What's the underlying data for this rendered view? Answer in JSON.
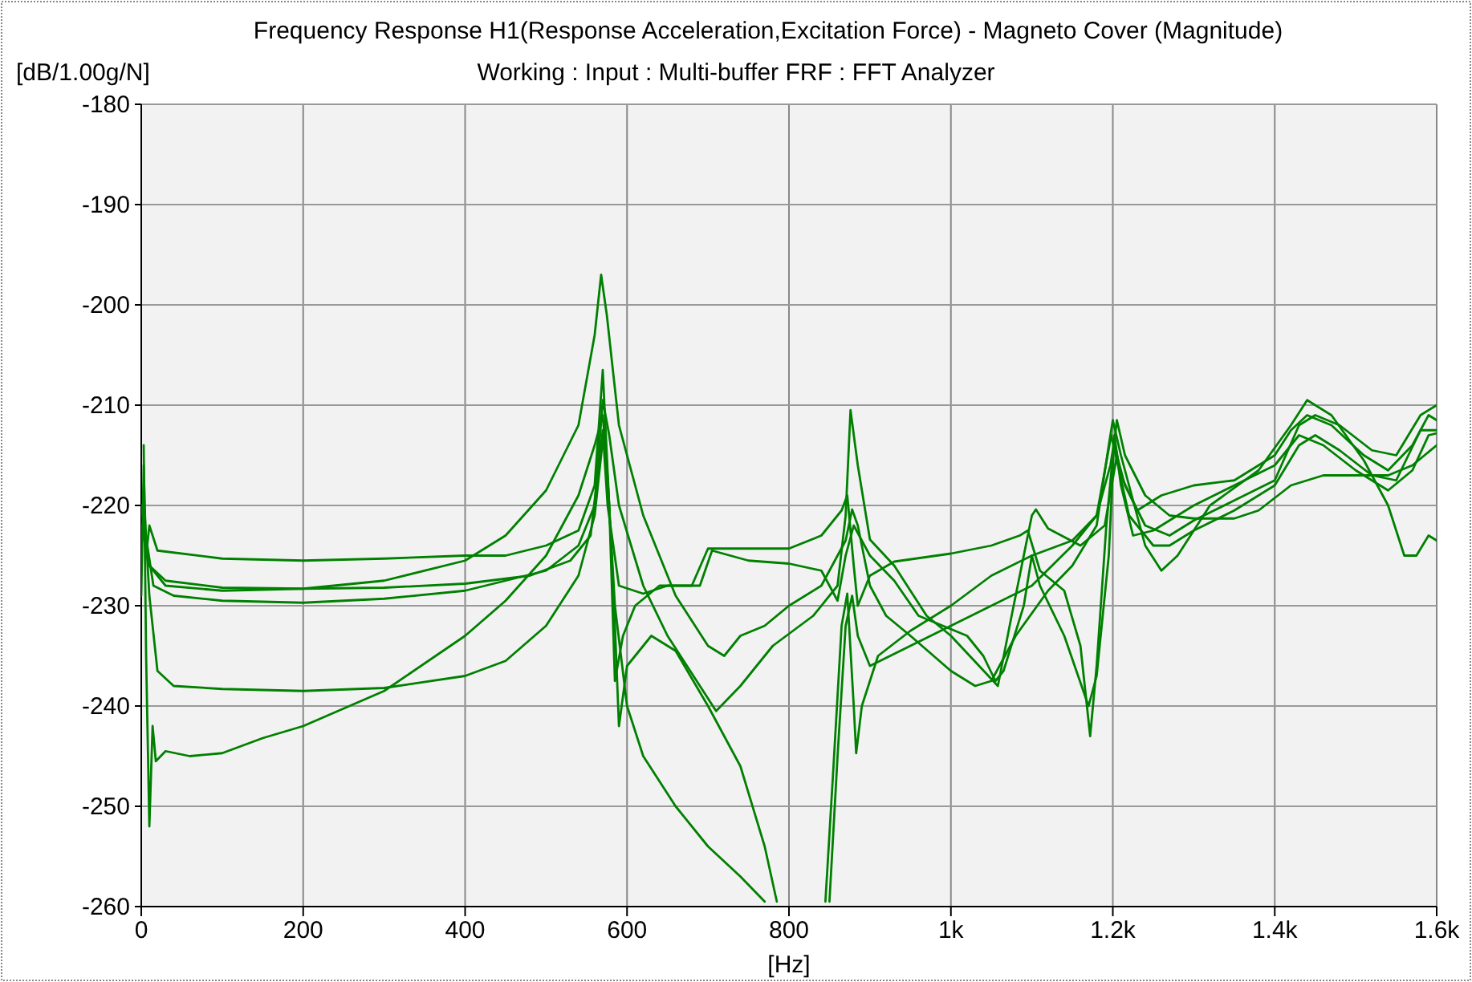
{
  "chart_data": {
    "type": "line",
    "title": "Frequency Response H1(Response Acceleration,Excitation Force) - Magneto Cover (Magnitude)",
    "subtitle": "Working : Input : Multi-buffer FRF : FFT Analyzer",
    "xlabel": "[Hz]",
    "ylabel": "[dB/1.00g/N]",
    "xlim": [
      0,
      1600
    ],
    "ylim": [
      -260,
      -180
    ],
    "xticks": [
      0,
      200,
      400,
      600,
      800,
      {
        "value": 1000,
        "label": "1k"
      },
      {
        "value": 1200,
        "label": "1.2k"
      },
      {
        "value": 1400,
        "label": "1.4k"
      },
      {
        "value": 1600,
        "label": "1.6k"
      }
    ],
    "yticks": [
      -260,
      -250,
      -240,
      -230,
      -220,
      -210,
      -200,
      -190,
      -180
    ],
    "grid": true,
    "marker": "none",
    "line_style": "solid",
    "series": [
      {
        "color": "#008000",
        "x": [
          0,
          3,
          6,
          10,
          20,
          100,
          200,
          300,
          400,
          450,
          500,
          540,
          560,
          570,
          578,
          585,
          595,
          610,
          640,
          680,
          700,
          750,
          800,
          840,
          865,
          872,
          880,
          885,
          900,
          930,
          1000,
          1050,
          1085,
          1095,
          1110,
          1140,
          1160,
          1172,
          1180,
          1192,
          1200,
          1205,
          1215,
          1240,
          1270,
          1300,
          1350,
          1380,
          1420,
          1460,
          1540,
          1570,
          1600
        ],
        "values": [
          -229,
          -216,
          -225,
          -222,
          -224.5,
          -225.3,
          -225.5,
          -225.3,
          -225,
          -225,
          -224,
          -222.5,
          -218,
          -206.5,
          -220,
          -237.5,
          -233,
          -230,
          -228,
          -228,
          -224.3,
          -224.3,
          -224.3,
          -223,
          -220.5,
          -219,
          -226,
          -230,
          -227,
          -225.6,
          -224.8,
          -224,
          -223,
          -222.5,
          -226.5,
          -228.5,
          -234,
          -243,
          -236,
          -222,
          -215,
          -211.5,
          -215,
          -219,
          -221,
          -221.3,
          -221.3,
          -220.5,
          -218,
          -217,
          -217,
          -216,
          -214
        ]
      },
      {
        "color": "#008000",
        "x": [
          0,
          10,
          30,
          100,
          200,
          300,
          400,
          480,
          530,
          555,
          565,
          570,
          576,
          590,
          620,
          650,
          690,
          705,
          750,
          800,
          840,
          860,
          870,
          880,
          900,
          930,
          960,
          990,
          1020,
          1040,
          1055,
          1065,
          1090,
          1100,
          1110,
          1140,
          1170,
          1180,
          1195,
          1202,
          1210,
          1225,
          1250,
          1300,
          1350,
          1400,
          1430,
          1460,
          1500,
          1540,
          1570,
          1590,
          1600
        ],
        "values": [
          -222,
          -226,
          -227.5,
          -228.2,
          -228.3,
          -228.2,
          -227.8,
          -227,
          -225.5,
          -223,
          -216,
          -212.5,
          -220,
          -228,
          -228.8,
          -228,
          -228,
          -224.5,
          -225.5,
          -225.8,
          -226.5,
          -229.5,
          -225,
          -222,
          -225,
          -227.5,
          -231,
          -232,
          -233,
          -235,
          -237.5,
          -236.5,
          -230,
          -225,
          -228,
          -233,
          -240,
          -237,
          -225,
          -213,
          -218,
          -223,
          -222.5,
          -220,
          -218,
          -216,
          -213,
          -214,
          -216.5,
          -218.5,
          -216.5,
          -213,
          -212.8
        ]
      },
      {
        "color": "#008000",
        "x": [
          0,
          15,
          40,
          100,
          200,
          300,
          400,
          500,
          540,
          560,
          570,
          578,
          590,
          620,
          650,
          690,
          710,
          740,
          780,
          830,
          860,
          870,
          876,
          885,
          900,
          930,
          970,
          1000,
          1058,
          1075,
          1100,
          1105,
          1120,
          1160,
          1190,
          1205,
          1215,
          1240,
          1270,
          1300,
          1350,
          1400,
          1430,
          1450,
          1480,
          1520,
          1550,
          1580,
          1600
        ],
        "values": [
          -220,
          -228,
          -229,
          -229.5,
          -229.7,
          -229.3,
          -228.5,
          -226.5,
          -224,
          -220,
          -209.5,
          -213,
          -220,
          -228,
          -233,
          -238,
          -240.5,
          -238,
          -234,
          -231,
          -228,
          -221,
          -210.5,
          -216,
          -223.4,
          -226,
          -231,
          -233,
          -238,
          -231,
          -221,
          -220.4,
          -222.3,
          -224,
          -222,
          -215,
          -218,
          -222,
          -223,
          -221.5,
          -219.5,
          -217.5,
          -212,
          -211,
          -212,
          -214.5,
          -215,
          -211,
          -210
        ]
      },
      {
        "color": "#008000",
        "x": [
          3,
          10,
          30,
          100,
          200,
          300,
          400,
          450,
          500,
          540,
          560,
          568,
          575,
          590,
          620,
          660,
          700,
          720,
          740,
          770,
          800,
          840,
          870,
          878,
          885,
          900,
          920,
          950,
          1000,
          1030,
          1050,
          1080,
          1120,
          1150,
          1180,
          1195,
          1200,
          1210,
          1240,
          1260,
          1280,
          1320,
          1380,
          1420,
          1440,
          1470,
          1510,
          1540,
          1560,
          1575,
          1590,
          1600
        ],
        "values": [
          -222,
          -226,
          -228,
          -228.5,
          -228.3,
          -227.5,
          -225.5,
          -223,
          -218.5,
          -212,
          -203,
          -197,
          -201,
          -212,
          -221,
          -229,
          -234,
          -235,
          -233,
          -232,
          -230,
          -228,
          -223.5,
          -220.4,
          -222,
          -228,
          -231,
          -233,
          -236.5,
          -238,
          -237.5,
          -233,
          -228.5,
          -226,
          -222,
          -214,
          -211.5,
          -215,
          -224,
          -226.5,
          -225,
          -220,
          -216.5,
          -212,
          -209.5,
          -211,
          -215.5,
          -220,
          -225,
          -225,
          -223,
          -223.5
        ]
      },
      {
        "color": "#008000",
        "x": [
          3,
          6,
          10,
          14,
          18,
          30,
          60,
          100,
          150,
          200,
          300,
          400,
          450,
          500,
          540,
          560,
          570,
          575,
          585,
          600,
          620,
          660,
          700,
          740,
          770,
          775,
          845,
          850,
          860,
          870,
          878,
          885,
          900,
          950,
          1000,
          1050,
          1100,
          1150,
          1180,
          1197,
          1202,
          1210,
          1230,
          1260,
          1300,
          1350,
          1380,
          1400,
          1420,
          1440,
          1470,
          1510,
          1540,
          1570,
          1590,
          1600
        ],
        "values": [
          -214,
          -235,
          -252,
          -242,
          -245.5,
          -244.5,
          -245,
          -244.7,
          -243.2,
          -242,
          -238.5,
          -233,
          -229.5,
          -225,
          -219,
          -214,
          -211,
          -216,
          -230,
          -240,
          -245,
          -250,
          -254,
          -257,
          -259.5,
          null,
          null,
          -259.5,
          -245,
          -232,
          -229,
          -233,
          -236,
          -234,
          -232,
          -230,
          -228,
          -224,
          -221,
          -216,
          -213.5,
          -217,
          -220.5,
          -219,
          -218,
          -217.5,
          -216,
          -215,
          -212.5,
          -211,
          -212,
          -215,
          -216.5,
          -214,
          -211,
          -211.5
        ]
      },
      {
        "color": "#008000",
        "x": [
          3,
          10,
          20,
          40,
          100,
          200,
          300,
          400,
          450,
          500,
          540,
          560,
          572,
          578,
          585,
          590,
          600,
          630,
          660,
          700,
          740,
          770,
          785,
          790,
          840,
          845,
          855,
          865,
          872,
          880,
          883,
          890,
          910,
          950,
          1000,
          1050,
          1100,
          1150,
          1180,
          1198,
          1205,
          1220,
          1250,
          1270,
          1300,
          1350,
          1400,
          1430,
          1450,
          1480,
          1520,
          1550,
          1580,
          1600
        ],
        "values": [
          -219,
          -229,
          -236.5,
          -238,
          -238.3,
          -238.5,
          -238.2,
          -237,
          -235.5,
          -232,
          -227,
          -221,
          -212,
          -220,
          -232,
          -242,
          -236,
          -233,
          -234.5,
          -240,
          -246,
          -254,
          -259.5,
          null,
          null,
          -259.5,
          -246,
          -232,
          -228.8,
          -240,
          -244.7,
          -240,
          -235,
          -232.5,
          -230,
          -227,
          -225,
          -223.5,
          -221,
          -213,
          -215.5,
          -221,
          -224,
          -224,
          -222.5,
          -220.5,
          -218,
          -214,
          -213,
          -214.5,
          -217,
          -217.5,
          -212.5,
          -212.5
        ]
      }
    ]
  }
}
